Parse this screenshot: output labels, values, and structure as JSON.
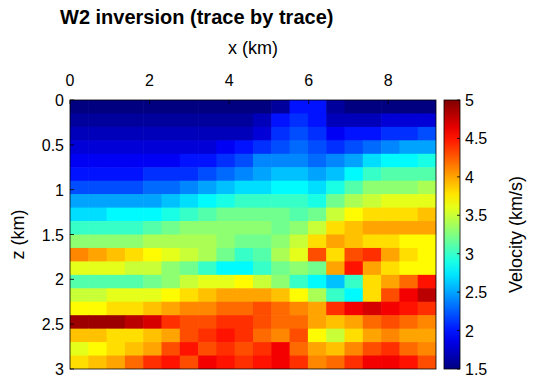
{
  "chart_data": {
    "type": "heatmap",
    "title": "W2 inversion (trace by trace)",
    "x_label": "x (km)",
    "y_label": "z (km)",
    "xlim": [
      0,
      9.2
    ],
    "xticks": [
      0,
      2,
      4,
      6,
      8
    ],
    "ylim": [
      0,
      3
    ],
    "yticks": [
      0,
      0.5,
      1,
      1.5,
      2,
      2.5,
      3
    ],
    "grid": false,
    "x": [
      0.23,
      0.69,
      1.15,
      1.61,
      2.07,
      2.53,
      2.99,
      3.45,
      3.91,
      4.37,
      4.83,
      5.29,
      5.75,
      6.21,
      6.67,
      7.13,
      7.59,
      8.05,
      8.51,
      8.97
    ],
    "y": [
      0.075,
      0.225,
      0.375,
      0.525,
      0.675,
      0.825,
      0.975,
      1.125,
      1.275,
      1.425,
      1.575,
      1.725,
      1.875,
      2.025,
      2.175,
      2.325,
      2.475,
      2.625,
      2.775,
      2.925
    ],
    "cells": [
      [
        1.5,
        1.5,
        1.5,
        1.5,
        1.5,
        1.5,
        1.5,
        1.5,
        1.5,
        1.5,
        1.5,
        1.6,
        2.0,
        2.0,
        1.6,
        1.5,
        1.5,
        1.5,
        1.5,
        1.5
      ],
      [
        1.6,
        1.6,
        1.6,
        1.6,
        1.6,
        1.6,
        1.6,
        1.6,
        1.6,
        1.6,
        1.7,
        2.0,
        2.1,
        2.0,
        1.7,
        1.7,
        1.7,
        1.8,
        1.8,
        1.8
      ],
      [
        1.7,
        1.7,
        1.7,
        1.7,
        1.7,
        1.7,
        1.7,
        1.7,
        1.7,
        1.7,
        1.8,
        2.1,
        2.2,
        2.1,
        1.9,
        2.0,
        2.0,
        2.1,
        2.1,
        2.2
      ],
      [
        1.8,
        1.8,
        1.8,
        1.8,
        1.8,
        1.8,
        1.8,
        1.8,
        1.9,
        2.0,
        2.1,
        2.2,
        2.3,
        2.2,
        2.1,
        2.2,
        2.3,
        2.4,
        2.5,
        2.5
      ],
      [
        1.9,
        1.9,
        1.9,
        1.9,
        1.9,
        1.9,
        2.0,
        2.0,
        2.1,
        2.2,
        2.4,
        2.4,
        2.4,
        2.3,
        2.4,
        2.5,
        2.7,
        2.8,
        2.8,
        2.9
      ],
      [
        2.0,
        2.0,
        2.0,
        2.0,
        2.1,
        2.1,
        2.1,
        2.2,
        2.3,
        2.4,
        2.5,
        2.6,
        2.6,
        2.5,
        2.6,
        2.8,
        3.0,
        3.1,
        3.1,
        3.1
      ],
      [
        2.2,
        2.2,
        2.2,
        2.2,
        2.3,
        2.3,
        2.4,
        2.5,
        2.6,
        2.7,
        2.7,
        2.8,
        2.8,
        2.7,
        2.9,
        3.1,
        3.3,
        3.3,
        3.3,
        3.4
      ],
      [
        2.5,
        2.5,
        2.5,
        2.5,
        2.5,
        2.6,
        2.7,
        2.8,
        2.9,
        3.0,
        3.0,
        3.0,
        3.0,
        2.9,
        3.2,
        3.4,
        3.5,
        3.6,
        3.6,
        3.6
      ],
      [
        2.7,
        2.7,
        2.8,
        2.8,
        2.8,
        2.9,
        3.0,
        3.1,
        3.2,
        3.2,
        3.2,
        3.2,
        3.1,
        3.2,
        3.5,
        3.7,
        3.8,
        3.8,
        3.8,
        3.9
      ],
      [
        3.0,
        3.0,
        3.0,
        3.0,
        3.1,
        3.2,
        3.3,
        3.3,
        3.3,
        3.3,
        3.3,
        3.2,
        3.3,
        3.5,
        3.8,
        3.9,
        4.0,
        4.0,
        4.0,
        4.0
      ],
      [
        3.3,
        3.3,
        3.3,
        3.3,
        3.4,
        3.4,
        3.4,
        3.4,
        3.3,
        3.2,
        3.2,
        3.3,
        3.5,
        3.8,
        4.0,
        3.9,
        3.8,
        3.8,
        3.7,
        3.7
      ],
      [
        4.1,
        4.0,
        3.9,
        3.8,
        3.7,
        3.6,
        3.5,
        3.4,
        3.2,
        3.0,
        3.1,
        3.4,
        3.6,
        4.3,
        3.8,
        4.3,
        4.4,
        4.0,
        3.8,
        3.7
      ],
      [
        3.6,
        3.6,
        3.6,
        3.5,
        3.5,
        3.3,
        3.2,
        3.0,
        2.8,
        2.8,
        3.0,
        3.2,
        3.3,
        3.2,
        4.0,
        4.5,
        4.0,
        3.8,
        3.7,
        3.7
      ],
      [
        3.1,
        3.1,
        3.1,
        3.1,
        3.2,
        3.3,
        3.5,
        3.6,
        3.6,
        3.7,
        3.5,
        3.3,
        3.0,
        2.8,
        2.6,
        3.0,
        3.8,
        4.0,
        4.2,
        4.5
      ],
      [
        3.5,
        3.5,
        3.6,
        3.6,
        3.6,
        3.7,
        3.8,
        3.9,
        4.0,
        4.0,
        4.0,
        3.9,
        3.7,
        3.4,
        3.0,
        2.8,
        3.8,
        4.3,
        4.6,
        4.8
      ],
      [
        3.7,
        3.7,
        3.8,
        3.8,
        3.9,
        4.0,
        4.1,
        4.1,
        4.2,
        4.2,
        4.3,
        4.2,
        4.1,
        4.0,
        4.4,
        4.6,
        4.7,
        4.6,
        4.5,
        4.4
      ],
      [
        4.9,
        4.9,
        4.9,
        4.8,
        4.7,
        4.4,
        4.3,
        4.3,
        4.4,
        4.4,
        4.3,
        4.2,
        4.2,
        4.0,
        3.9,
        4.0,
        4.2,
        4.3,
        4.2,
        4.1
      ],
      [
        3.9,
        3.9,
        3.8,
        3.8,
        3.9,
        4.0,
        4.3,
        4.4,
        4.5,
        4.4,
        4.2,
        4.1,
        4.3,
        3.7,
        3.5,
        3.8,
        4.0,
        4.1,
        4.0,
        4.0
      ],
      [
        3.6,
        3.7,
        3.8,
        3.9,
        4.0,
        4.3,
        4.5,
        4.3,
        4.4,
        4.3,
        4.4,
        4.6,
        4.2,
        4.0,
        3.9,
        4.1,
        4.3,
        4.4,
        4.2,
        4.1
      ],
      [
        3.8,
        3.9,
        4.0,
        4.2,
        4.4,
        4.5,
        4.3,
        4.6,
        4.5,
        4.4,
        4.5,
        4.6,
        4.4,
        4.1,
        4.2,
        4.4,
        4.6,
        4.6,
        4.5,
        4.3
      ]
    ],
    "colorbar": {
      "label": "Velocity (km/s)",
      "range": [
        1.5,
        5
      ],
      "ticks": [
        1.5,
        2,
        2.5,
        3,
        3.5,
        4,
        4.5,
        5
      ]
    }
  }
}
